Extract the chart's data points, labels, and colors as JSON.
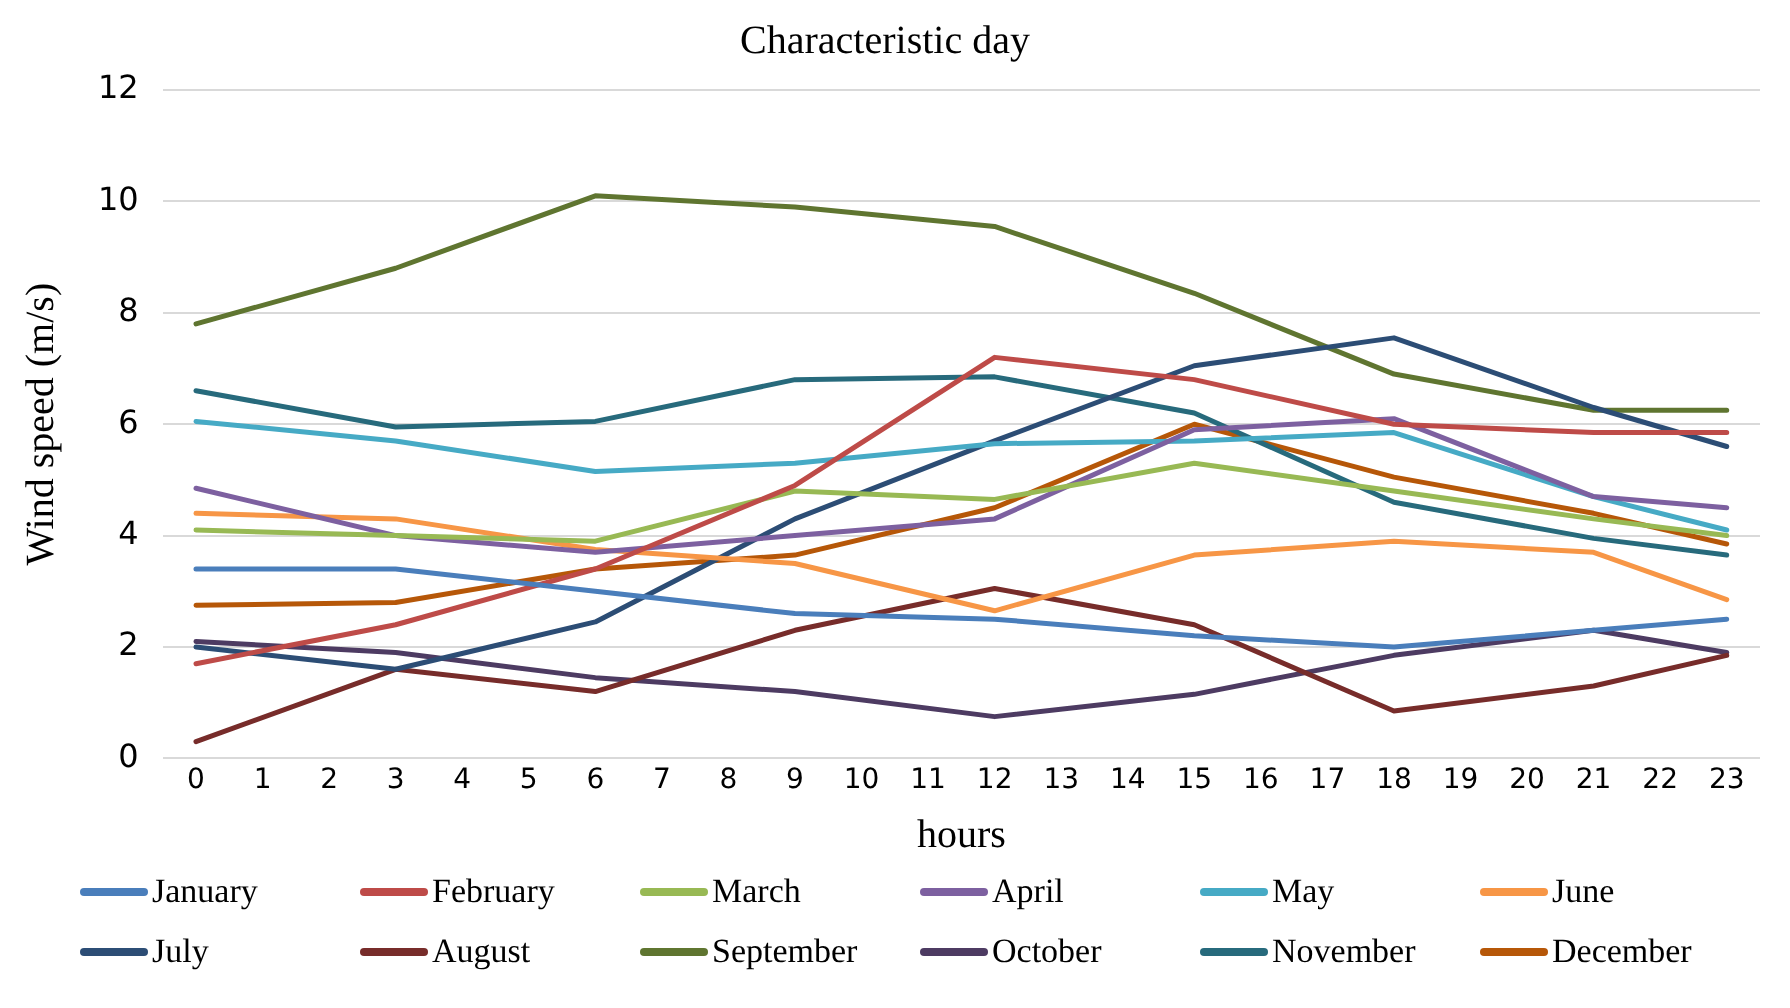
{
  "chart_data": {
    "type": "line",
    "title": "Characteristic day",
    "xlabel": "hours",
    "ylabel": "Wind speed (m/s)",
    "x": [
      0,
      3,
      6,
      9,
      12,
      15,
      18,
      21,
      23
    ],
    "xlim": [
      -0.5,
      23.5
    ],
    "xticks": [
      0,
      1,
      2,
      3,
      4,
      5,
      6,
      7,
      8,
      9,
      10,
      11,
      12,
      13,
      14,
      15,
      16,
      17,
      18,
      19,
      20,
      21,
      22,
      23
    ],
    "ylim": [
      0,
      12
    ],
    "yticks": [
      0,
      2,
      4,
      6,
      8,
      10,
      12
    ],
    "grid": "y",
    "legend": "bottom",
    "marker": "none",
    "line_style": "solid",
    "series": [
      {
        "name": "January",
        "color": "#4a7ebb",
        "values": [
          3.4,
          3.4,
          3.0,
          2.6,
          2.5,
          2.2,
          2.0,
          2.3,
          2.5
        ]
      },
      {
        "name": "February",
        "color": "#be4b48",
        "values": [
          1.7,
          2.4,
          3.4,
          4.9,
          7.2,
          6.8,
          6.0,
          5.85,
          5.85
        ]
      },
      {
        "name": "March",
        "color": "#98b954",
        "values": [
          4.1,
          4.0,
          3.9,
          4.8,
          4.65,
          5.3,
          4.8,
          4.3,
          4.0
        ]
      },
      {
        "name": "April",
        "color": "#7d60a0",
        "values": [
          4.85,
          4.0,
          3.7,
          4.0,
          4.3,
          5.9,
          6.1,
          4.7,
          4.5
        ]
      },
      {
        "name": "May",
        "color": "#46aac5",
        "values": [
          6.05,
          5.7,
          5.15,
          5.3,
          5.65,
          5.7,
          5.85,
          4.7,
          4.1
        ]
      },
      {
        "name": "June",
        "color": "#f79646",
        "values": [
          4.4,
          4.3,
          3.75,
          3.5,
          2.65,
          3.65,
          3.9,
          3.7,
          2.85
        ]
      },
      {
        "name": "July",
        "color": "#2c4d75",
        "values": [
          2.0,
          1.6,
          2.45,
          4.3,
          5.7,
          7.05,
          7.55,
          6.3,
          5.6
        ]
      },
      {
        "name": "August",
        "color": "#772c2a",
        "values": [
          0.3,
          1.6,
          1.2,
          2.3,
          3.05,
          2.4,
          0.85,
          1.3,
          1.85
        ]
      },
      {
        "name": "September",
        "color": "#5f7530",
        "values": [
          7.8,
          8.8,
          10.1,
          9.9,
          9.55,
          8.35,
          6.9,
          6.25,
          6.25
        ]
      },
      {
        "name": "October",
        "color": "#4d3b62",
        "values": [
          2.1,
          1.9,
          1.45,
          1.2,
          0.75,
          1.15,
          1.85,
          2.3,
          1.9
        ]
      },
      {
        "name": "November",
        "color": "#276a7c",
        "values": [
          6.6,
          5.95,
          6.05,
          6.8,
          6.85,
          6.2,
          4.6,
          3.95,
          3.65
        ]
      },
      {
        "name": "December",
        "color": "#b65708",
        "values": [
          2.75,
          2.8,
          3.4,
          3.65,
          4.5,
          6.0,
          5.05,
          4.4,
          3.85
        ]
      }
    ]
  }
}
